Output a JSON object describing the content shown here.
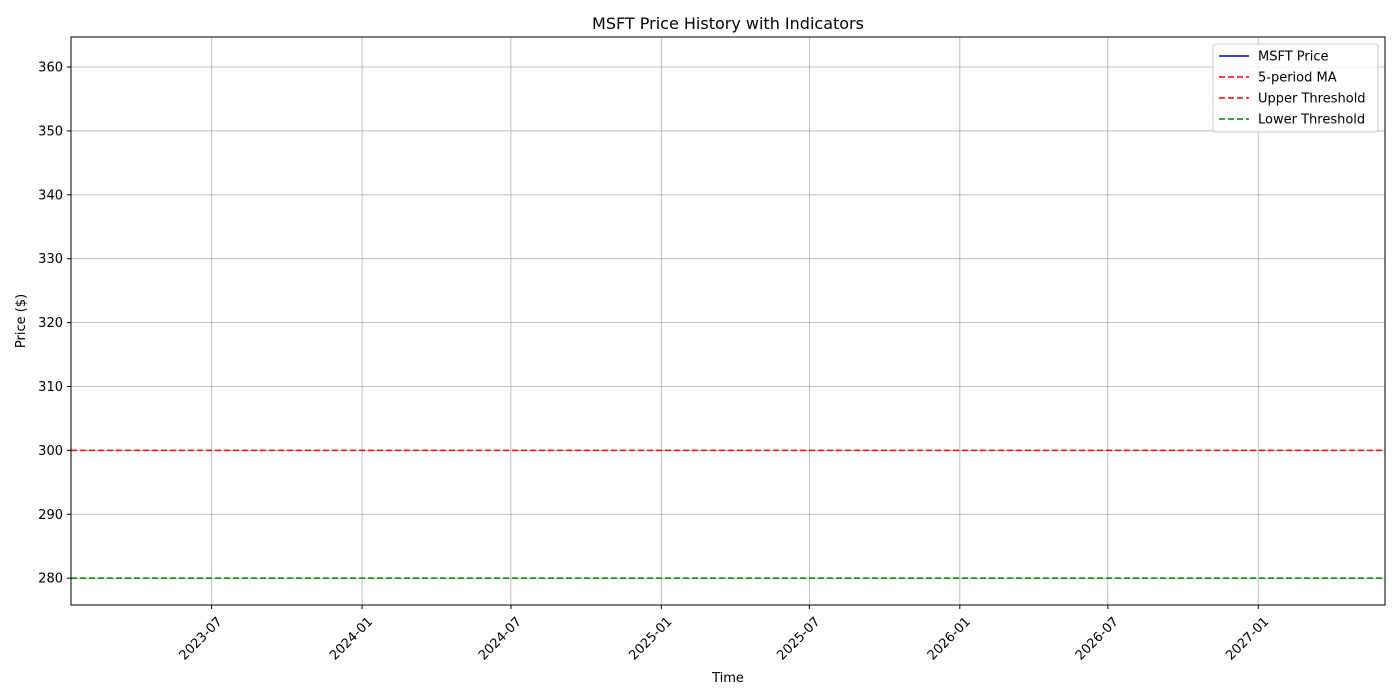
{
  "chart_data": {
    "type": "line",
    "title": "MSFT Price History with Indicators",
    "xlabel": "Time",
    "ylabel": "Price ($)",
    "xlim": [
      "2023-01-10",
      "2027-06-05"
    ],
    "ylim": [
      275.8,
      364.7
    ],
    "xticks": [
      "2023-07",
      "2024-01",
      "2024-07",
      "2025-01",
      "2025-07",
      "2026-01",
      "2026-07",
      "2027-01"
    ],
    "yticks": [
      280,
      290,
      300,
      310,
      320,
      330,
      340,
      350,
      360
    ],
    "grid": true,
    "legend_position": "top-right",
    "series": [
      {
        "name": "MSFT Price",
        "color": "#0000cc",
        "style": "solid",
        "points": []
      },
      {
        "name": "5-period MA",
        "color": "#ff0000",
        "style": "dashed",
        "points": []
      },
      {
        "name": "Upper Threshold",
        "color": "#ff0000",
        "style": "dashed",
        "constant": 300
      },
      {
        "name": "Lower Threshold",
        "color": "#008000",
        "style": "dashed",
        "constant": 280
      }
    ]
  }
}
